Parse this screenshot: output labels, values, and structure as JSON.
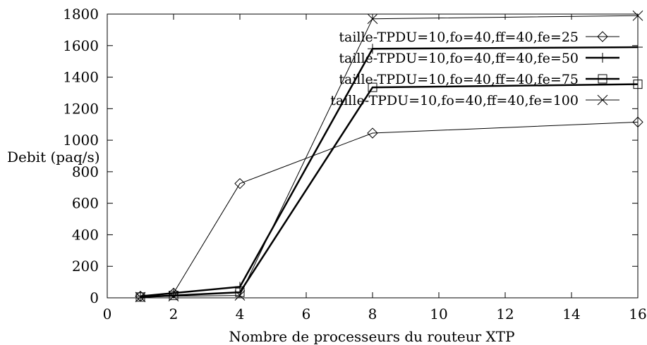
{
  "chart_data": {
    "type": "line",
    "title": "",
    "xlabel": "Nombre de processeurs du routeur XTP",
    "ylabel": "Debit (paq/s)",
    "xlim": [
      0,
      16
    ],
    "ylim": [
      0,
      1800
    ],
    "xticks": [
      0,
      2,
      4,
      6,
      8,
      10,
      12,
      14,
      16
    ],
    "yticks": [
      0,
      200,
      400,
      600,
      800,
      1000,
      1200,
      1400,
      1600,
      1800
    ],
    "grid": false,
    "legend_position": "top-right",
    "series": [
      {
        "name": "taille-TPDU=10,fo=40,ff=40,fe=25",
        "marker": "diamond",
        "stroke_width": 1,
        "x": [
          1,
          2,
          4,
          8,
          16
        ],
        "y": [
          10,
          30,
          725,
          1045,
          1115
        ]
      },
      {
        "name": "taille-TPDU=10,fo=40,ff=40,fe=50",
        "marker": "plus",
        "stroke_width": 2.5,
        "x": [
          1,
          2,
          4,
          8,
          16
        ],
        "y": [
          10,
          30,
          70,
          1580,
          1590
        ]
      },
      {
        "name": "taille-TPDU=10,fo=40,ff=40,fe=75",
        "marker": "square",
        "stroke_width": 2.5,
        "x": [
          1,
          2,
          4,
          8,
          16
        ],
        "y": [
          5,
          15,
          35,
          1335,
          1355
        ]
      },
      {
        "name": "taille-TPDU=10,fo=40,ff=40,fe=100",
        "marker": "x",
        "stroke_width": 1,
        "x": [
          1,
          2,
          4,
          8,
          16
        ],
        "y": [
          5,
          10,
          15,
          1770,
          1790
        ]
      }
    ]
  }
}
